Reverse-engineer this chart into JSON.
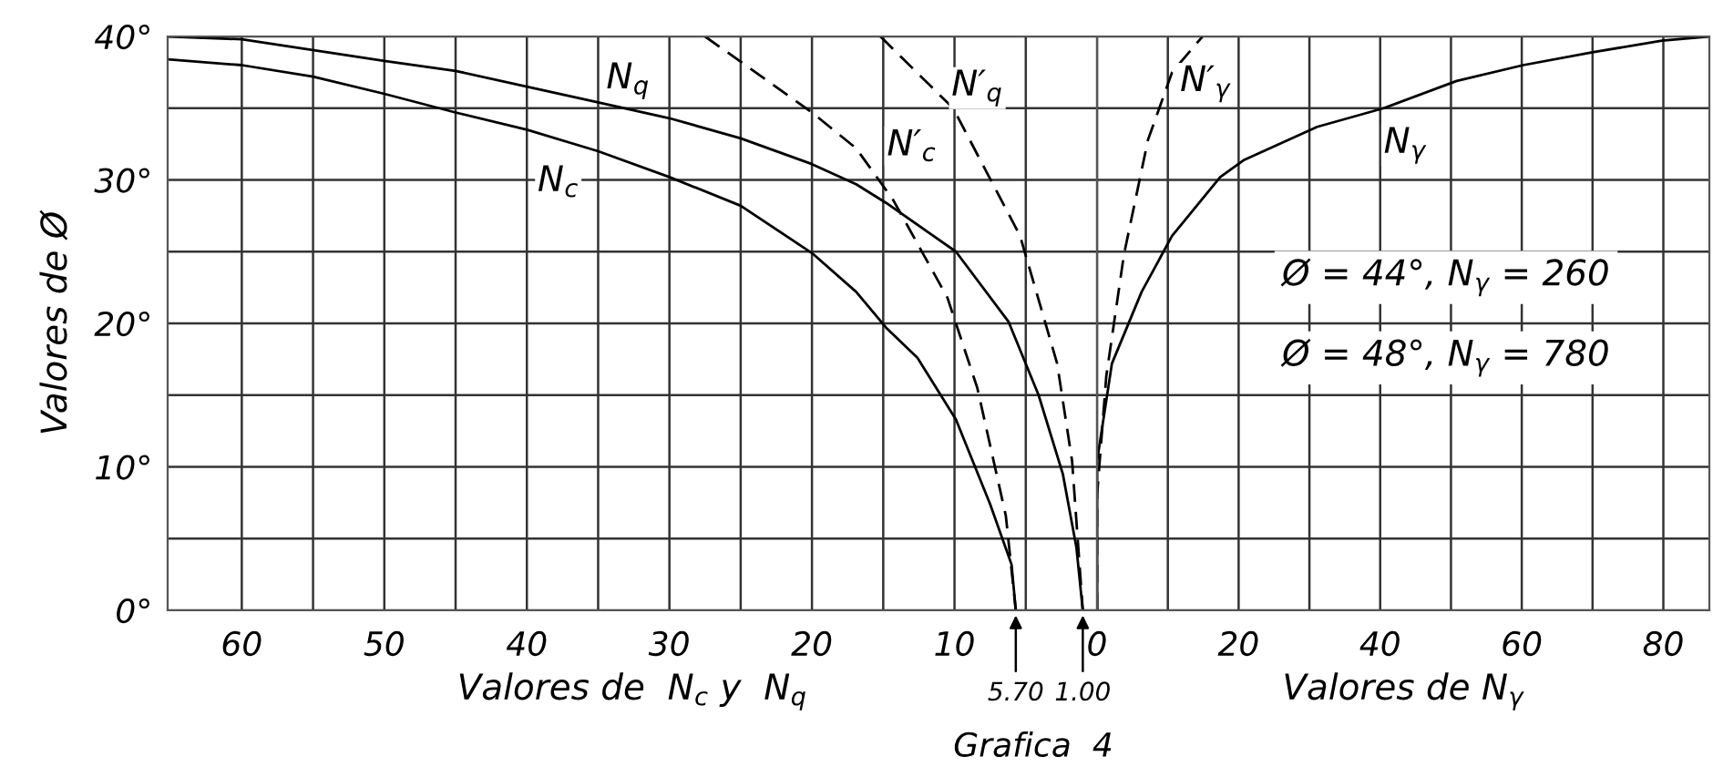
{
  "chart_data": [
    {
      "type": "line",
      "ylabel": "Valores de Ø",
      "xlabel": "Valores de  N$_{c}$ y  N$_{q}$",
      "xlim": [
        65.2,
        0
      ],
      "ylim": [
        0,
        40
      ],
      "xticks": [
        60,
        {
          "value": 55,
          "label": null
        },
        50,
        {
          "value": 45,
          "label": null
        },
        40,
        {
          "value": 35,
          "label": null
        },
        30,
        {
          "value": 25,
          "label": null
        },
        20,
        {
          "value": 15,
          "label": null
        },
        10,
        {
          "value": 5,
          "label": null
        }
      ],
      "yticks": [
        {
          "value": 0,
          "label": "0°"
        },
        {
          "value": 5,
          "label": null
        },
        {
          "value": 10,
          "label": "10°"
        },
        {
          "value": 15,
          "label": null
        },
        {
          "value": 20,
          "label": "20°"
        },
        {
          "value": 25,
          "label": null
        },
        {
          "value": 30,
          "label": "30°"
        },
        {
          "value": 35,
          "label": null
        },
        {
          "value": 40,
          "label": "40°"
        }
      ],
      "grid": true,
      "legend": false,
      "series": [
        {
          "color": "#000000",
          "line_style": "solid",
          "x": [
            65.2,
            60,
            50,
            45,
            40,
            35,
            30,
            25,
            20,
            16.9,
            14.8,
            9.9,
            6.2,
            4.1,
            2.4,
            1.45,
            1.0
          ],
          "values": [
            40,
            39.8,
            38.3,
            37.6,
            36.5,
            35.4,
            34.3,
            32.9,
            31.1,
            29.7,
            28.4,
            25,
            20.1,
            15.0,
            9.5,
            4.4,
            0
          ]
        },
        {
          "color": "#000000",
          "line_style": "solid",
          "x": [
            65.2,
            60,
            55,
            50,
            45,
            40,
            35,
            30,
            25,
            20,
            16.9,
            14.8,
            12.6,
            9.9,
            7.5,
            6.0,
            5.7
          ],
          "values": [
            38.4,
            38.0,
            37.2,
            36.0,
            34.7,
            33.5,
            32.0,
            30.2,
            28.2,
            24.9,
            22.2,
            19.7,
            17.6,
            13.3,
            7.4,
            3.2,
            0
          ]
        },
        {
          "color": "#000000",
          "line_style": "dashed",
          "x": [
            27.5,
            20,
            16.9,
            14.3,
            10.5,
            8.4,
            6.4,
            5.7
          ],
          "values": [
            40,
            34.7,
            32.2,
            28.6,
            21.8,
            15.5,
            6.6,
            0
          ]
        },
        {
          "color": "#000000",
          "line_style": "dashed",
          "x": [
            15.2,
            10.1,
            5.4,
            2.8,
            1.75,
            1.0
          ],
          "values": [
            40,
            35.0,
            26.1,
            17.2,
            10.4,
            0
          ]
        }
      ],
      "annotations": [
        {
          "text": "N$_{q}$",
          "x": 32.9,
          "y": 36.9
        },
        {
          "text": "N$_{c}$",
          "x": 37.8,
          "y": 29.9
        },
        {
          "text": "N′$_{c}$",
          "x": 13.0,
          "y": 32.4
        },
        {
          "text": "N′$_{q}$",
          "x": 8.4,
          "y": 36.4
        },
        {
          "text": "5.70",
          "x": 5.7,
          "y": 0
        },
        {
          "text": "1.00",
          "x": 1.0,
          "y": 0
        },
        "Grafica  4"
      ]
    },
    {
      "type": "line",
      "xlabel": "Valores de N$_{γ}$",
      "xlim": [
        0,
        86.5
      ],
      "ylim": [
        0,
        40
      ],
      "xticks": [
        0,
        {
          "value": 10,
          "label": null
        },
        20,
        {
          "value": 30,
          "label": null
        },
        40,
        {
          "value": 50,
          "label": null
        },
        60,
        {
          "value": 70,
          "label": null
        },
        80
      ],
      "yticks": [
        {
          "value": 0,
          "label": null
        },
        {
          "value": 5,
          "label": null
        },
        {
          "value": 10,
          "label": null
        },
        {
          "value": 15,
          "label": null
        },
        {
          "value": 20,
          "label": null
        },
        {
          "value": 25,
          "label": null
        },
        {
          "value": 30,
          "label": null
        },
        {
          "value": 35,
          "label": null
        },
        {
          "value": 40,
          "label": null
        }
      ],
      "tick_labels": "x",
      "grid": true,
      "legend": false,
      "series": [
        {
          "color": "#000000",
          "line_style": "solid",
          "x": [
            0,
            0,
            2.1,
            6.3,
            10.6,
            17.4,
            20.8,
            31.1,
            40.5,
            50.8,
            60.2,
            70,
            79.8,
            86.5
          ],
          "values": [
            0,
            10.4,
            17.2,
            22.2,
            26.1,
            30.2,
            31.4,
            33.7,
            35.0,
            36.9,
            38.0,
            38.9,
            39.7,
            40
          ]
        },
        {
          "color": "#000000",
          "line_style": "dashed",
          "x": [
            0,
            0,
            1.3,
            3.8,
            7.2,
            10.6,
            14.9
          ],
          "values": [
            0,
            8,
            16.3,
            24.8,
            32.8,
            37.5,
            40
          ]
        }
      ],
      "annotations": [
        {
          "text": "N′$_{γ}$",
          "x": 15.3,
          "y": 36.7
        },
        {
          "text": "N$_{γ}$",
          "x": 43.5,
          "y": 32.4
        },
        "Ø = 44°, N$_{γ}$ = 260",
        "Ø = 48°, N$_{γ}$ = 780"
      ]
    }
  ]
}
